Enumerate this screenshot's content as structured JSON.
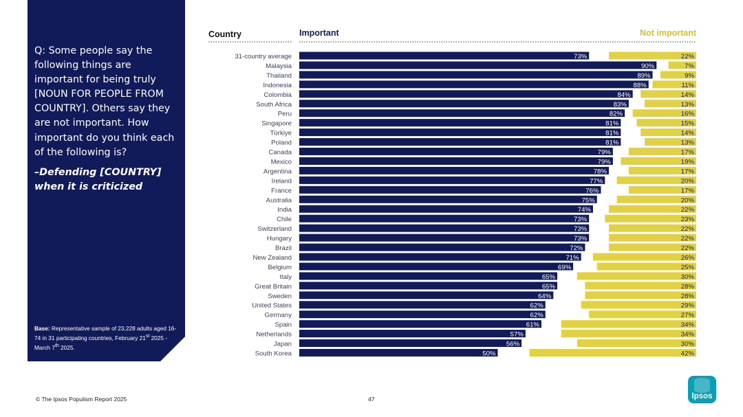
{
  "sidebar": {
    "question": "Q: Some people say the following things are important for being truly [NOUN FOR PEOPLE FROM COUNTRY]. Others say they are not important. How important do you think each of the following is?",
    "subquestion": "–Defending [COUNTRY] when it is criticized",
    "base_label": "Base:",
    "base_text": "Representative sample of 23,228 adults aged 16-74 in 31 participating countries, February 21",
    "base_sup1": "st",
    "base_mid": " 2025 - March 7",
    "base_sup2": "th",
    "base_end": " 2025."
  },
  "footer": {
    "copyright": "© The Ipsos Populism Report 2025",
    "page_number": "47"
  },
  "logo": {
    "text": "Ipsos"
  },
  "colors": {
    "navy": "#121b5a",
    "yellow": "#e1d143",
    "text": "#3a3f5c"
  },
  "chart_data": {
    "type": "bar",
    "headers": {
      "country": "Country",
      "important": "Important",
      "not_important": "Not important"
    },
    "categories": [
      "31-country average",
      "Malaysia",
      "Thailand",
      "Indonesia",
      "Colombia",
      "South Africa",
      "Peru",
      "Singapore",
      "Türkiye",
      "Poland",
      "Canada",
      "Mexico",
      "Argentina",
      "Ireland",
      "France",
      "Australia",
      "India",
      "Chile",
      "Switzerland",
      "Hungary",
      "Brazil",
      "New Zealand",
      "Belgium",
      "Italy",
      "Great Britain",
      "Sweden",
      "United States",
      "Germany",
      "Spain",
      "Netherlands",
      "Japan",
      "South Korea"
    ],
    "series": [
      {
        "name": "Important",
        "values": [
          73,
          90,
          89,
          88,
          84,
          83,
          82,
          81,
          81,
          81,
          79,
          79,
          78,
          77,
          76,
          75,
          74,
          73,
          73,
          73,
          72,
          71,
          69,
          65,
          65,
          64,
          62,
          62,
          61,
          57,
          56,
          50
        ]
      },
      {
        "name": "Not important",
        "values": [
          22,
          7,
          9,
          11,
          14,
          13,
          16,
          15,
          14,
          13,
          17,
          19,
          17,
          20,
          17,
          20,
          22,
          23,
          22,
          22,
          22,
          26,
          25,
          30,
          28,
          28,
          29,
          27,
          34,
          34,
          30,
          42
        ]
      }
    ],
    "value_suffix": "%",
    "xlim": [
      0,
      100
    ]
  }
}
